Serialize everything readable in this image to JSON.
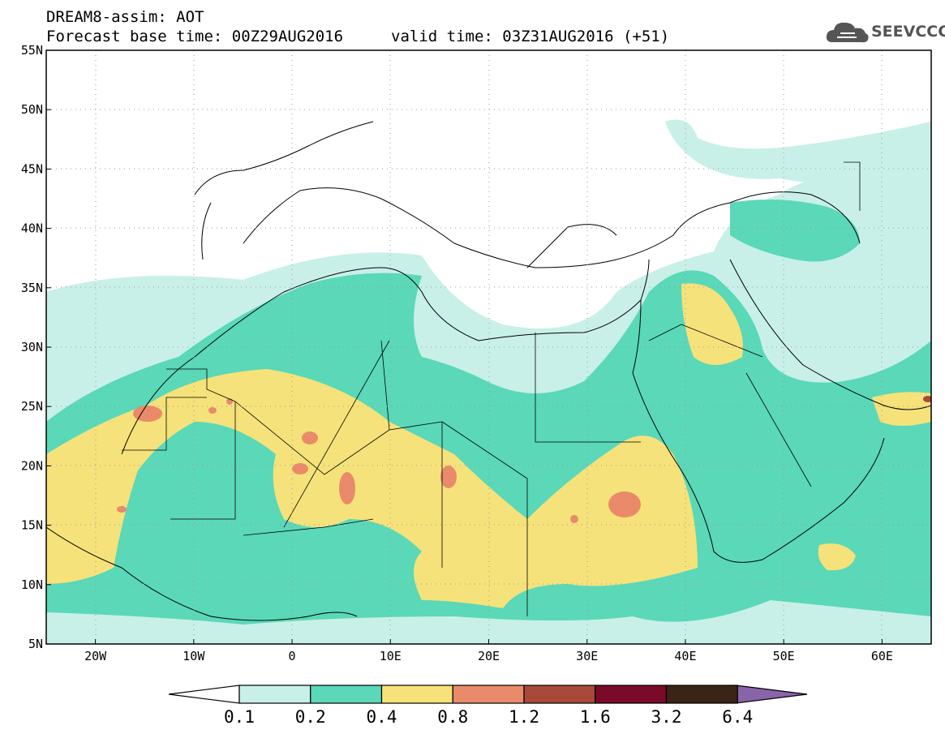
{
  "header": {
    "line1": "DREAM8-assim: AOT",
    "line2_left": "Forecast base time: 00Z29AUG2016",
    "line2_right": "valid time: 03Z31AUG2016 (+51)"
  },
  "logo": {
    "text": "SEEVCCC",
    "icon": "cloud-icon"
  },
  "map": {
    "projection": "lat-lon",
    "extent": {
      "lon": [
        -25,
        65
      ],
      "lat": [
        5,
        55
      ]
    },
    "lat_ticks": [
      "55N",
      "50N",
      "45N",
      "40N",
      "35N",
      "30N",
      "25N",
      "20N",
      "15N",
      "10N",
      "5N"
    ],
    "lon_ticks": [
      "20W",
      "10W",
      "0",
      "10E",
      "20E",
      "30E",
      "40E",
      "50E",
      "60E"
    ],
    "gridlines": "dotted",
    "field": "Aerosol optical thickness"
  },
  "colorbar": {
    "levels": [
      "0.1",
      "0.2",
      "0.4",
      "0.8",
      "1.2",
      "1.6",
      "3.2",
      "6.4"
    ],
    "colors": [
      "#ffffff",
      "#c8f0e8",
      "#5ad8b8",
      "#f6e27a",
      "#e98a6a",
      "#a8493a",
      "#7a0a2a",
      "#3a2416",
      "#8a64a8"
    ]
  }
}
